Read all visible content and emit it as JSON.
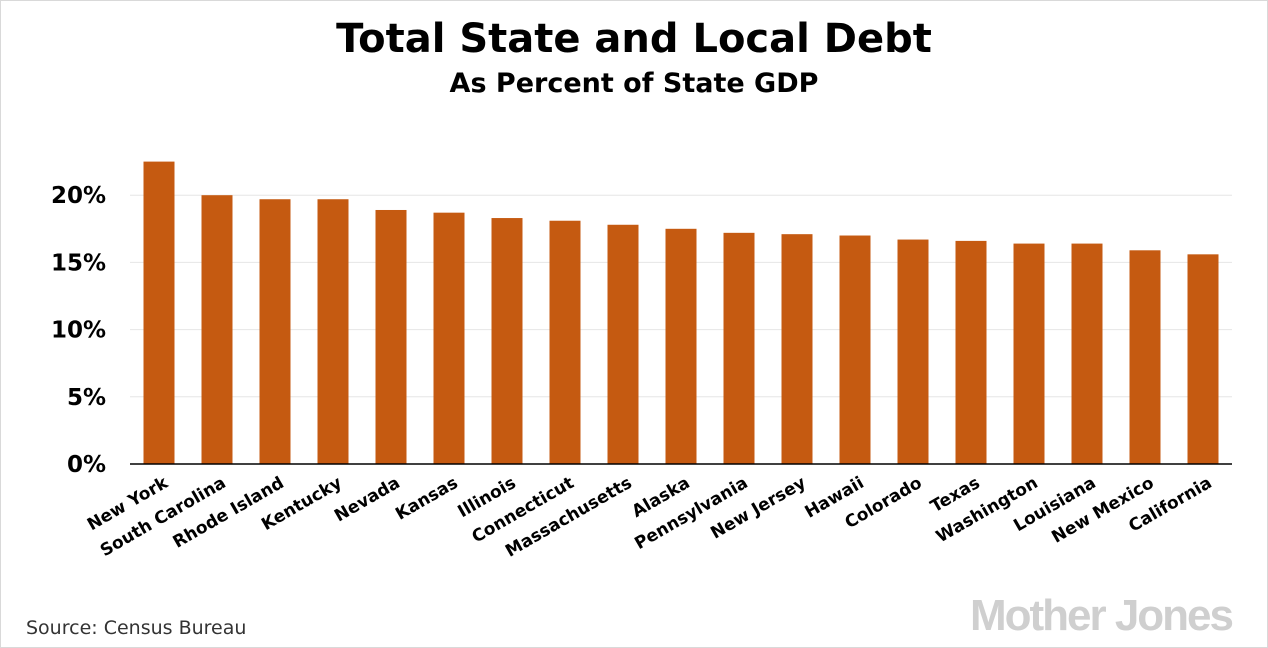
{
  "chart_data": {
    "type": "bar",
    "title": "Total State and Local Debt",
    "subtitle": "As Percent of State GDP",
    "categories": [
      "New York",
      "South Carolina",
      "Rhode Island",
      "Kentucky",
      "Nevada",
      "Kansas",
      "Illinois",
      "Connecticut",
      "Massachusetts",
      "Alaska",
      "Pennsylvania",
      "New Jersey",
      "Hawaii",
      "Colorado",
      "Texas",
      "Washington",
      "Louisiana",
      "New Mexico",
      "California"
    ],
    "values": [
      22.5,
      20.0,
      19.7,
      19.7,
      18.9,
      18.7,
      18.3,
      18.1,
      17.8,
      17.5,
      17.2,
      17.1,
      17.0,
      16.7,
      16.6,
      16.4,
      16.4,
      15.9,
      15.6
    ],
    "ylim": [
      0,
      25
    ],
    "yticks": [
      0,
      5,
      10,
      15,
      20
    ],
    "ytick_labels": [
      "0%",
      "5%",
      "10%",
      "15%",
      "20%"
    ],
    "xlabel": "",
    "ylabel": "",
    "grid": true,
    "bar_color": "#c55a11"
  },
  "footer": {
    "source": "Source:  Census Bureau",
    "logo": "Mother Jones"
  }
}
